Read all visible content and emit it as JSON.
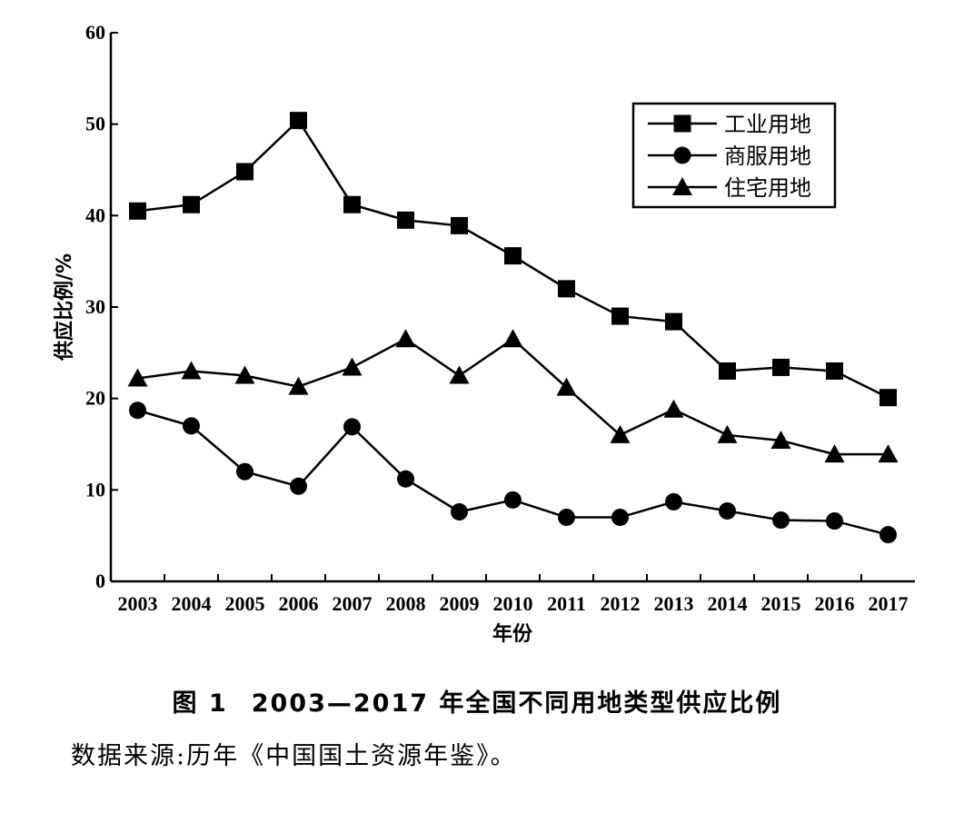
{
  "chart_data": {
    "type": "line",
    "ylabel": "供应比例/%",
    "xlabel": "年份",
    "ylim": [
      0,
      60
    ],
    "yticks": [
      0,
      10,
      20,
      30,
      40,
      50,
      60
    ],
    "categories": [
      "2003",
      "2004",
      "2005",
      "2006",
      "2007",
      "2008",
      "2009",
      "2010",
      "2011",
      "2012",
      "2013",
      "2014",
      "2015",
      "2016",
      "2017"
    ],
    "legend_position": "top-right",
    "grid": false,
    "series": [
      {
        "name": "工业用地",
        "marker": "square",
        "values": [
          40.5,
          41.2,
          44.8,
          50.4,
          41.2,
          39.5,
          38.9,
          35.6,
          32.0,
          29.0,
          28.4,
          23.0,
          23.4,
          23.0,
          20.1
        ]
      },
      {
        "name": "商服用地",
        "marker": "circle",
        "values": [
          18.7,
          17.0,
          12.0,
          10.4,
          16.9,
          11.2,
          7.6,
          8.9,
          7.0,
          7.0,
          8.7,
          7.7,
          6.7,
          6.6,
          5.1
        ]
      },
      {
        "name": "住宅用地",
        "marker": "triangle",
        "values": [
          22.2,
          23.0,
          22.5,
          21.3,
          23.4,
          26.5,
          22.5,
          26.5,
          21.2,
          16.0,
          18.8,
          16.0,
          15.4,
          13.9,
          13.9
        ]
      }
    ]
  },
  "caption": {
    "figure_number": "图 1",
    "title": "2003—2017 年全国不同用地类型供应比例"
  },
  "source_note": "数据来源:历年《中国国土资源年鉴》。"
}
